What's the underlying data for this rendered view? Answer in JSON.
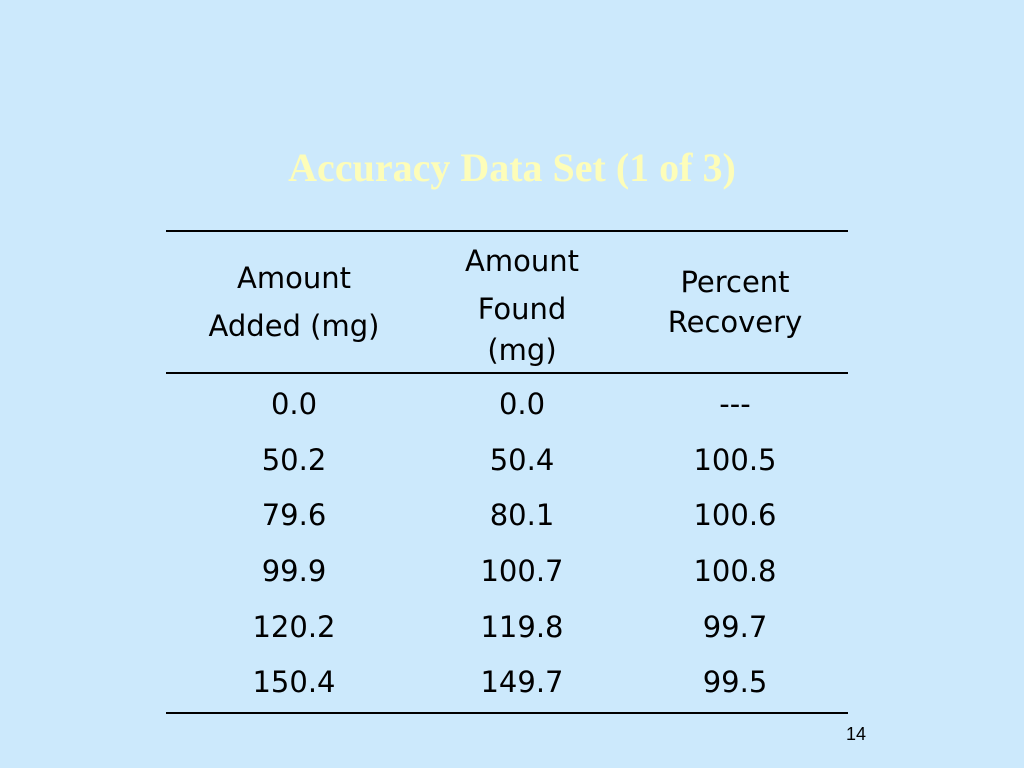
{
  "slide": {
    "title": "Accuracy Data Set (1 of 3)",
    "page_number": "14"
  },
  "table": {
    "headers": [
      [
        "Amount",
        "Added (mg)"
      ],
      [
        "Amount",
        "Found",
        "(mg)"
      ],
      [
        "Percent",
        "Recovery"
      ]
    ],
    "rows": [
      [
        "0.0",
        "0.0",
        "---"
      ],
      [
        "50.2",
        "50.4",
        "100.5"
      ],
      [
        "79.6",
        "80.1",
        "100.6"
      ],
      [
        "99.9",
        "100.7",
        "100.8"
      ],
      [
        "120.2",
        "119.8",
        "99.7"
      ],
      [
        "150.4",
        "149.7",
        "99.5"
      ]
    ]
  },
  "colors": {
    "background": "#cce9fc",
    "title": "#fdfdb9",
    "text": "#000000"
  }
}
